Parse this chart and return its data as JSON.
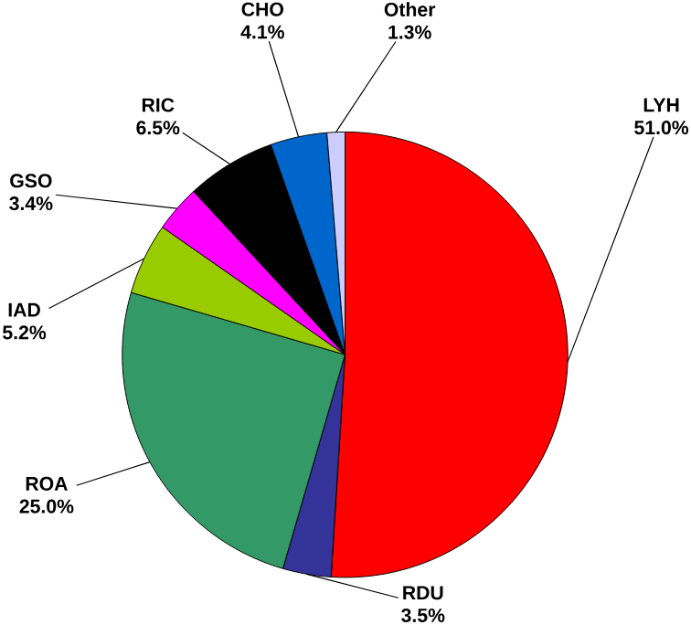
{
  "chart_data": {
    "type": "pie",
    "categories": [
      "LYH",
      "RDU",
      "ROA",
      "IAD",
      "GSO",
      "RIC",
      "CHO",
      "Other"
    ],
    "values": [
      51.0,
      3.5,
      25.0,
      5.2,
      3.4,
      6.5,
      4.1,
      1.3
    ],
    "value_labels": [
      "51.0%",
      "3.5%",
      "25.0%",
      "5.2%",
      "3.4%",
      "6.5%",
      "4.1%",
      "1.3%"
    ],
    "colors": [
      "#ff0000",
      "#333399",
      "#339966",
      "#99cc00",
      "#ff00ff",
      "#000000",
      "#0066cc",
      "#ccccff"
    ]
  }
}
